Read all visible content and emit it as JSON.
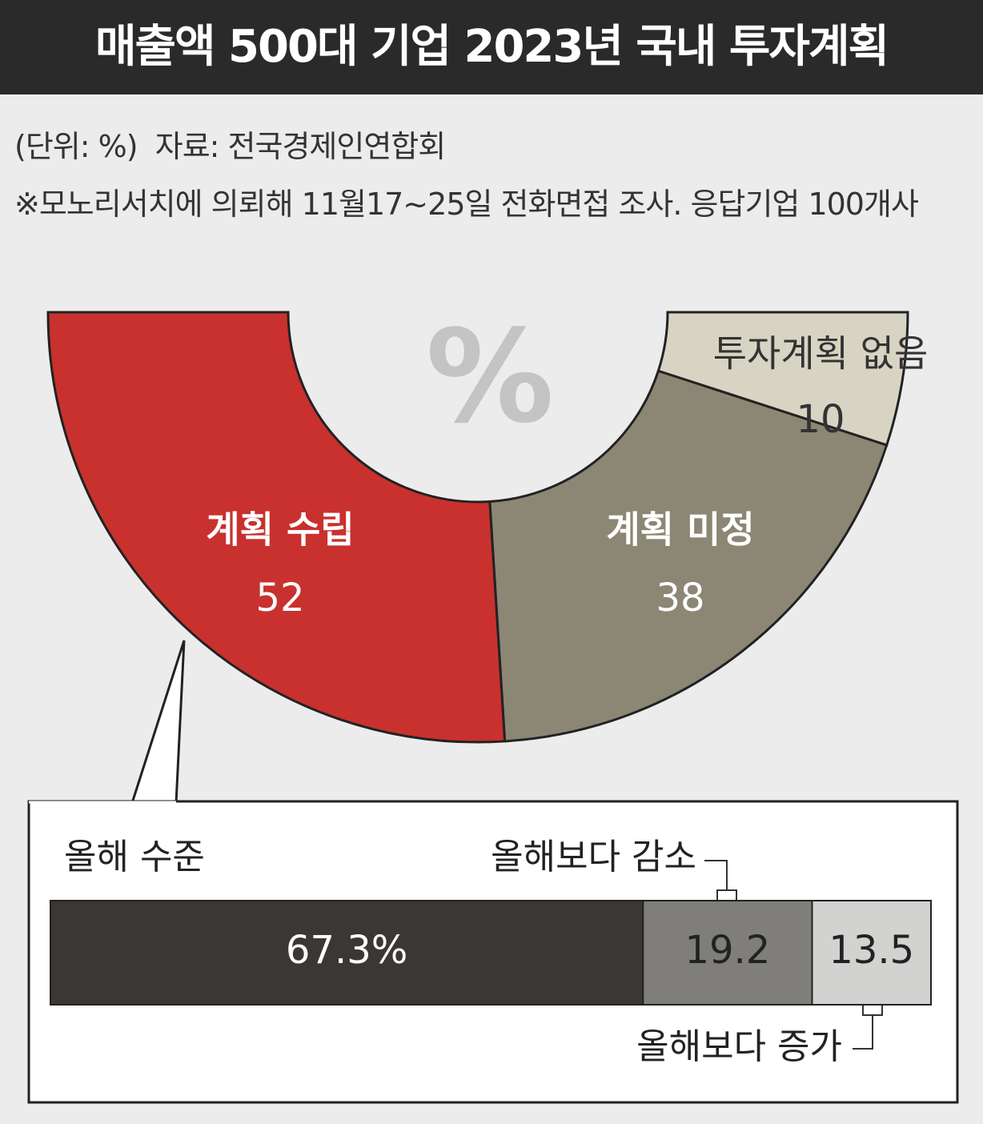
{
  "header": {
    "title": "매출액 500대 기업 2023년 국내 투자계획",
    "unit": "(단위: %)",
    "source": "자료: 전국경제인연합회",
    "note": "※모노리서치에 의뢰해 11월17~25일 전화면접 조사. 응답기업 100개사"
  },
  "chart_data": [
    {
      "type": "pie",
      "center_label": "%",
      "categories": [
        "계획 수립",
        "계획 미정",
        "투자계획 없음"
      ],
      "values": [
        52,
        38,
        10
      ],
      "colors": [
        "#c8312e",
        "#8b8774",
        "#d8d4c4"
      ]
    },
    {
      "type": "bar",
      "orientation": "horizontal",
      "stacked": true,
      "xlim": [
        0,
        100
      ],
      "series": [
        {
          "name": "올해 수준",
          "color": "#3a3735",
          "values": [
            67.3
          ],
          "value_labels": [
            "67.3%"
          ]
        },
        {
          "name": "올해보다 감소",
          "color": "#7f7e7a",
          "values": [
            19.2
          ]
        },
        {
          "name": "올해보다 증가",
          "color": "#d2d2d0",
          "values": [
            13.5
          ]
        }
      ]
    }
  ]
}
